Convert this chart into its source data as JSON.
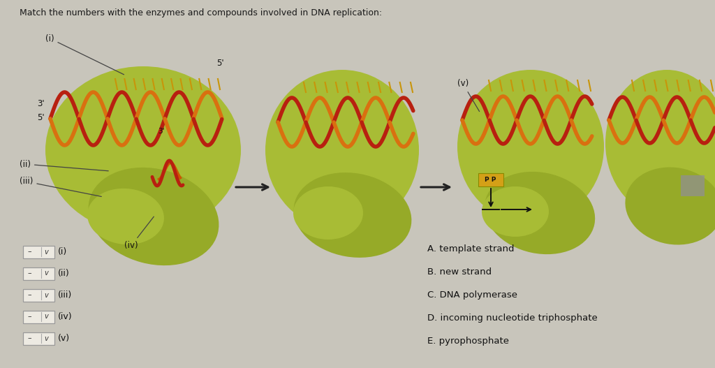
{
  "title": "Match the numbers with the enzymes and compounds involved in DNA replication:",
  "bg_color": "#c8c5bb",
  "green_blob_color": "#a8bc35",
  "green_blob_color2": "#96aa28",
  "title_fontsize": 9.0,
  "title_color": "#1a1a1a",
  "dropdown_labels": [
    "(i)",
    "(ii)",
    "(iii)",
    "(iv)",
    "(v)"
  ],
  "answer_labels": [
    "A. template strand",
    "B. new strand",
    "C. DNA polymerase",
    "D. incoming nucleotide triphosphate",
    "E. pyrophosphate"
  ],
  "orange_strand_color": "#d97010",
  "red_strand_color": "#b82010",
  "tick_color": "#c8950a",
  "label_color": "#111111",
  "pp_color": "#d4a017",
  "gray_box_color": "#909090"
}
